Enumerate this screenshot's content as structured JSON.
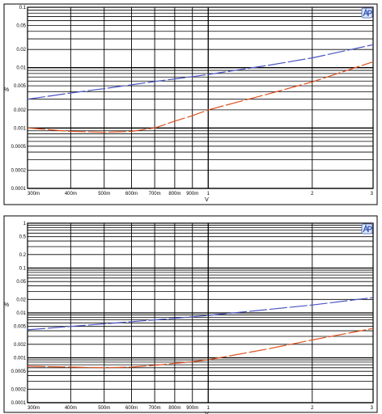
{
  "colors": {
    "series_blue": "#4a54c4",
    "series_red": "#e0501e",
    "grid": "#000000",
    "logo": "#3a5fb8"
  },
  "logo_icon": "ap-logo",
  "chart_data": [
    {
      "type": "line",
      "xscale": "log",
      "yscale": "log",
      "xlim": [
        0.3,
        3
      ],
      "ylim": [
        0.0001,
        0.1
      ],
      "grid": true,
      "xlabel": "V",
      "ylabel": "%",
      "xticks": [
        {
          "v": 0.3,
          "label": "300m"
        },
        {
          "v": 0.4,
          "label": "400m"
        },
        {
          "v": 0.5,
          "label": "500m"
        },
        {
          "v": 0.6,
          "label": "600m"
        },
        {
          "v": 0.7,
          "label": "700m"
        },
        {
          "v": 0.8,
          "label": "800m"
        },
        {
          "v": 0.9,
          "label": "900m"
        },
        {
          "v": 1,
          "label": "1"
        },
        {
          "v": 2,
          "label": "2"
        },
        {
          "v": 3,
          "label": "3"
        }
      ],
      "yticks": [
        {
          "v": 0.1,
          "label": "0.1"
        },
        {
          "v": 0.05,
          "label": "0.05"
        },
        {
          "v": 0.02,
          "label": "0.02"
        },
        {
          "v": 0.01,
          "label": "0.01"
        },
        {
          "v": 0.005,
          "label": "0.005"
        },
        {
          "v": 0.002,
          "label": "0.002"
        },
        {
          "v": 0.001,
          "label": "0.001"
        },
        {
          "v": 0.0005,
          "label": "0.0005"
        },
        {
          "v": 0.0002,
          "label": "0.0002"
        },
        {
          "v": 0.0001,
          "label": "0.0001"
        }
      ],
      "series": [
        {
          "color": "blue",
          "x": [
            0.3,
            0.4,
            0.5,
            0.6,
            0.7,
            0.8,
            0.9,
            1,
            1.5,
            2,
            3
          ],
          "y": [
            0.003,
            0.0038,
            0.0045,
            0.0052,
            0.0059,
            0.0065,
            0.0071,
            0.0077,
            0.011,
            0.0145,
            0.024
          ]
        },
        {
          "color": "red",
          "x": [
            0.3,
            0.4,
            0.5,
            0.6,
            0.7,
            0.8,
            0.9,
            1,
            1.5,
            2,
            3
          ],
          "y": [
            0.001,
            0.00088,
            0.00085,
            0.00088,
            0.001,
            0.0013,
            0.0016,
            0.002,
            0.0037,
            0.0058,
            0.0125
          ]
        }
      ]
    },
    {
      "type": "line",
      "xscale": "log",
      "yscale": "log",
      "xlim": [
        0.3,
        3
      ],
      "ylim": [
        0.0001,
        1
      ],
      "grid": true,
      "xlabel": "V",
      "ylabel": "%",
      "xticks": [
        {
          "v": 0.3,
          "label": "300m"
        },
        {
          "v": 0.4,
          "label": "400m"
        },
        {
          "v": 0.5,
          "label": "500m"
        },
        {
          "v": 0.6,
          "label": "600m"
        },
        {
          "v": 0.7,
          "label": "700m"
        },
        {
          "v": 0.8,
          "label": "800m"
        },
        {
          "v": 0.9,
          "label": "900m"
        },
        {
          "v": 1,
          "label": "1"
        },
        {
          "v": 2,
          "label": "2"
        },
        {
          "v": 3,
          "label": "3"
        }
      ],
      "yticks": [
        {
          "v": 1,
          "label": "1"
        },
        {
          "v": 0.5,
          "label": "0.5"
        },
        {
          "v": 0.2,
          "label": "0.2"
        },
        {
          "v": 0.1,
          "label": "0.1"
        },
        {
          "v": 0.05,
          "label": "0.05"
        },
        {
          "v": 0.02,
          "label": "0.02"
        },
        {
          "v": 0.01,
          "label": "0.01"
        },
        {
          "v": 0.005,
          "label": "0.005"
        },
        {
          "v": 0.002,
          "label": "0.002"
        },
        {
          "v": 0.001,
          "label": "0.001"
        },
        {
          "v": 0.0005,
          "label": "0.0005"
        },
        {
          "v": 0.0002,
          "label": "0.0002"
        },
        {
          "v": 0.0001,
          "label": "0.0001"
        }
      ],
      "series": [
        {
          "color": "blue",
          "x": [
            0.3,
            0.4,
            0.5,
            0.6,
            0.7,
            0.8,
            0.9,
            1,
            1.5,
            2,
            3
          ],
          "y": [
            0.0042,
            0.005,
            0.0057,
            0.0064,
            0.007,
            0.0076,
            0.0082,
            0.0088,
            0.012,
            0.015,
            0.022
          ]
        },
        {
          "color": "red",
          "x": [
            0.3,
            0.4,
            0.5,
            0.6,
            0.7,
            0.8,
            0.9,
            1,
            1.5,
            2,
            3
          ],
          "y": [
            0.00065,
            0.00062,
            0.0006,
            0.00062,
            0.00068,
            0.00075,
            0.00082,
            0.0009,
            0.0016,
            0.0025,
            0.0045
          ]
        }
      ]
    }
  ]
}
